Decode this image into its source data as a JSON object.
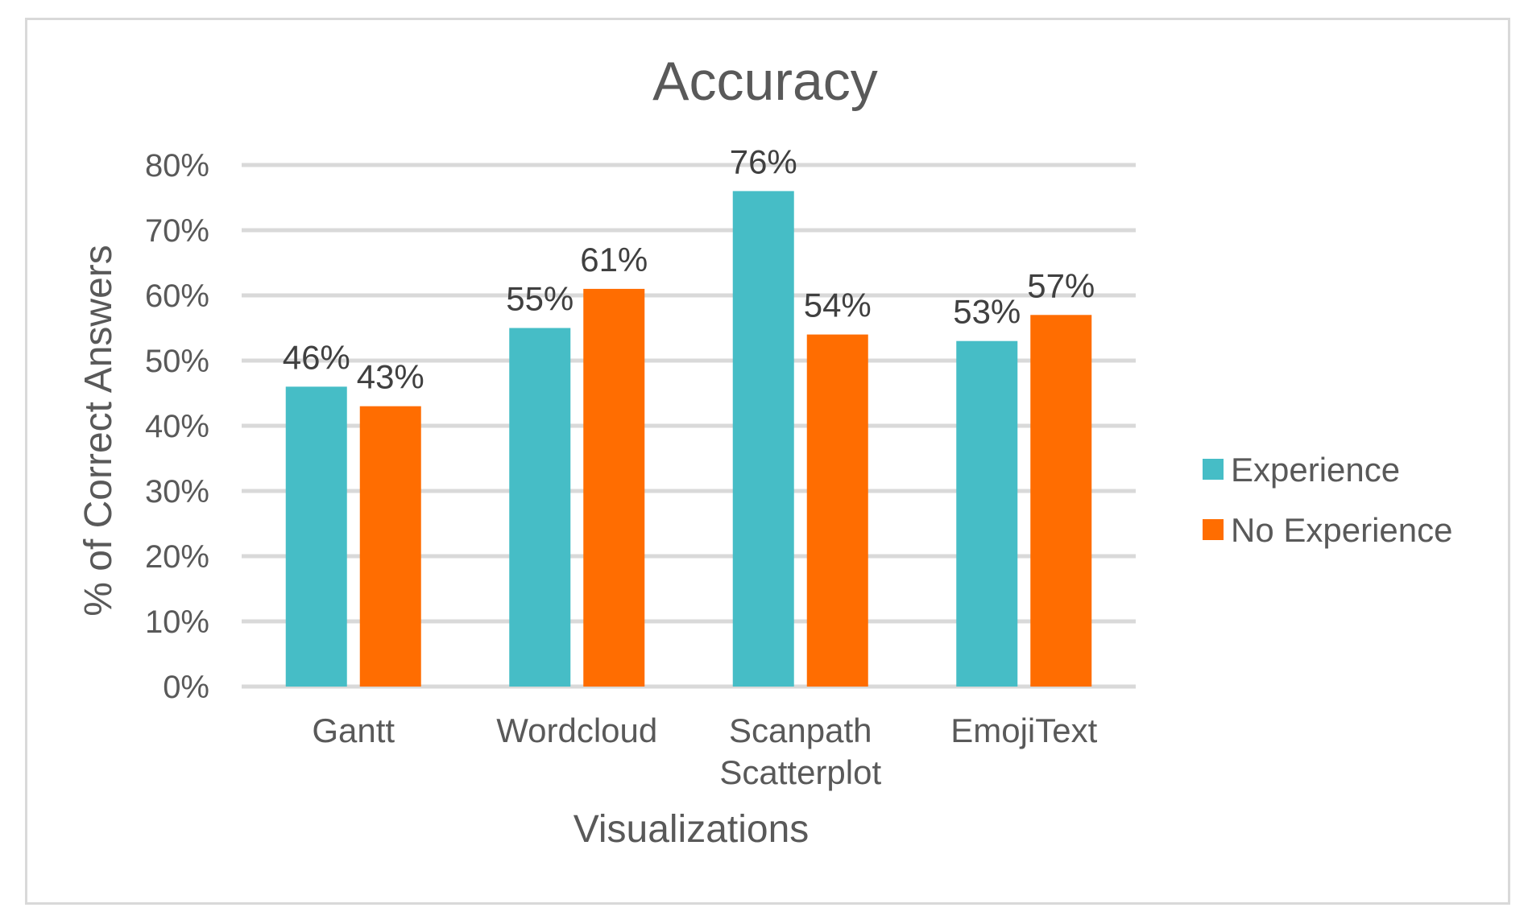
{
  "chart_data": {
    "type": "bar",
    "title": "Accuracy",
    "xlabel": "Visualizations",
    "ylabel": "% of Correct Answers",
    "categories": [
      [
        "Gantt"
      ],
      [
        "Wordcloud"
      ],
      [
        "Scanpath",
        "Scatterplot"
      ],
      [
        "EmojiText"
      ]
    ],
    "series": [
      {
        "name": "Experience",
        "color": "#46bdc6",
        "values": [
          46,
          55,
          76,
          53
        ],
        "labels": [
          "46%",
          "55%",
          "76%",
          "53%"
        ]
      },
      {
        "name": "No Experience",
        "color": "#ff6d01",
        "values": [
          43,
          61,
          54,
          57
        ],
        "labels": [
          "43%",
          "61%",
          "54%",
          "57%"
        ]
      }
    ],
    "ylim": [
      0,
      80
    ],
    "yticks": [
      "0%",
      "10%",
      "20%",
      "30%",
      "40%",
      "50%",
      "60%",
      "70%",
      "80%"
    ],
    "grid": true,
    "legend_position": "right"
  }
}
